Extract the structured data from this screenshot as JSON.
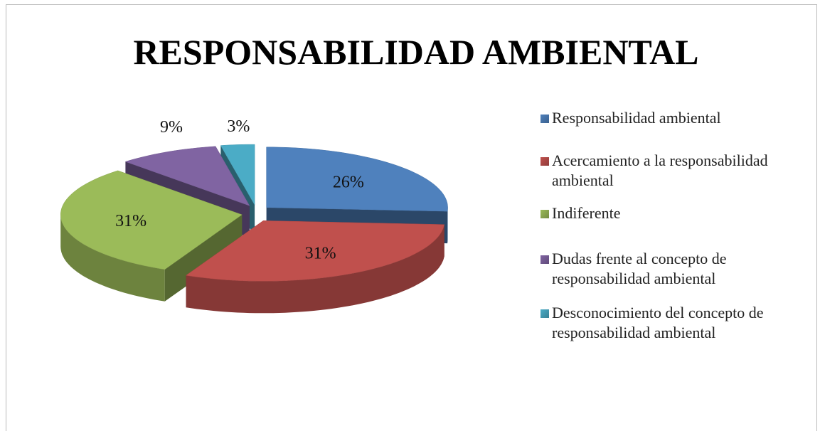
{
  "chart_data": {
    "type": "pie",
    "title": "RESPONSABILIDAD AMBIENTAL",
    "categories": [
      "Responsabilidad ambiental",
      "Acercamiento a la responsabilidad ambiental",
      "Indiferente",
      "Dudas frente al concepto de responsabilidad ambiental",
      "Desconocimiento del concepto de responsabilidad ambiental"
    ],
    "values": [
      26,
      31,
      31,
      9,
      3
    ],
    "value_labels": [
      "26%",
      "31%",
      "31%",
      "9%",
      "3%"
    ],
    "colors": [
      "#4f81bd",
      "#c0504d",
      "#9bbb59",
      "#8064a2",
      "#4bacc6"
    ],
    "legend": "right"
  }
}
